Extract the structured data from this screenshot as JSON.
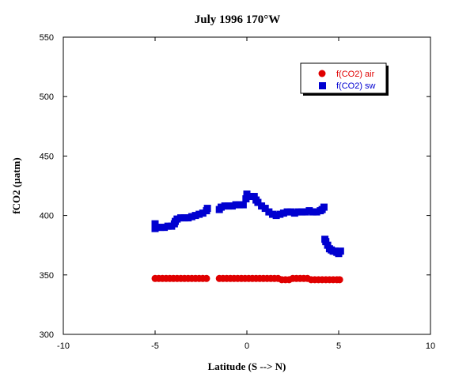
{
  "chart_data": {
    "type": "scatter",
    "title": "July 1996 170°W",
    "xlabel": "Latitude (S --> N)",
    "ylabel": "fCO2 (µatm)",
    "xlim": [
      -10,
      10
    ],
    "ylim": [
      300,
      550
    ],
    "x_ticks": [
      -10,
      -5,
      0,
      5,
      10
    ],
    "y_ticks": [
      300,
      350,
      400,
      450,
      500,
      550
    ],
    "grid": false,
    "legend_position": "top-right",
    "series": [
      {
        "name": "f(CO2) air",
        "marker": "circle",
        "color": "#e00000",
        "points": [
          [
            -5.0,
            347
          ],
          [
            -4.8,
            347
          ],
          [
            -4.6,
            347
          ],
          [
            -4.4,
            347
          ],
          [
            -4.2,
            347
          ],
          [
            -4.0,
            347
          ],
          [
            -3.8,
            347
          ],
          [
            -3.6,
            347
          ],
          [
            -3.4,
            347
          ],
          [
            -3.2,
            347
          ],
          [
            -3.0,
            347
          ],
          [
            -2.8,
            347
          ],
          [
            -2.6,
            347
          ],
          [
            -2.4,
            347
          ],
          [
            -2.2,
            347
          ],
          [
            -1.5,
            347
          ],
          [
            -1.3,
            347
          ],
          [
            -1.1,
            347
          ],
          [
            -0.9,
            347
          ],
          [
            -0.7,
            347
          ],
          [
            -0.5,
            347
          ],
          [
            -0.3,
            347
          ],
          [
            -0.1,
            347
          ],
          [
            0.1,
            347
          ],
          [
            0.3,
            347
          ],
          [
            0.5,
            347
          ],
          [
            0.7,
            347
          ],
          [
            0.9,
            347
          ],
          [
            1.1,
            347
          ],
          [
            1.3,
            347
          ],
          [
            1.5,
            347
          ],
          [
            1.7,
            347
          ],
          [
            1.9,
            346
          ],
          [
            2.1,
            346
          ],
          [
            2.3,
            346
          ],
          [
            2.5,
            347
          ],
          [
            2.7,
            347
          ],
          [
            2.9,
            347
          ],
          [
            3.1,
            347
          ],
          [
            3.3,
            347
          ],
          [
            3.5,
            346
          ],
          [
            3.7,
            346
          ],
          [
            3.9,
            346
          ],
          [
            4.1,
            346
          ],
          [
            4.3,
            346
          ],
          [
            4.5,
            346
          ],
          [
            4.7,
            346
          ],
          [
            4.9,
            346
          ],
          [
            5.05,
            346
          ]
        ]
      },
      {
        "name": "f(CO2) sw",
        "marker": "square",
        "color": "#0000d0",
        "points": [
          [
            -5.0,
            389
          ],
          [
            -5.0,
            393
          ],
          [
            -4.9,
            390
          ],
          [
            -4.7,
            390
          ],
          [
            -4.5,
            390
          ],
          [
            -4.3,
            391
          ],
          [
            -4.1,
            391
          ],
          [
            -3.95,
            393
          ],
          [
            -3.9,
            395
          ],
          [
            -3.8,
            397
          ],
          [
            -3.6,
            398
          ],
          [
            -3.4,
            398
          ],
          [
            -3.2,
            398
          ],
          [
            -3.0,
            399
          ],
          [
            -2.8,
            400
          ],
          [
            -2.6,
            401
          ],
          [
            -2.4,
            402
          ],
          [
            -2.2,
            404
          ],
          [
            -2.15,
            406
          ],
          [
            -1.5,
            405
          ],
          [
            -1.4,
            407
          ],
          [
            -1.2,
            408
          ],
          [
            -1.0,
            408
          ],
          [
            -0.8,
            408
          ],
          [
            -0.6,
            409
          ],
          [
            -0.4,
            409
          ],
          [
            -0.2,
            409
          ],
          [
            -0.05,
            414
          ],
          [
            0.0,
            418
          ],
          [
            0.2,
            416
          ],
          [
            0.4,
            416
          ],
          [
            0.5,
            413
          ],
          [
            0.6,
            411
          ],
          [
            0.8,
            408
          ],
          [
            1.0,
            406
          ],
          [
            1.2,
            403
          ],
          [
            1.4,
            401
          ],
          [
            1.6,
            400
          ],
          [
            1.8,
            401
          ],
          [
            2.0,
            402
          ],
          [
            2.2,
            403
          ],
          [
            2.4,
            403
          ],
          [
            2.6,
            402
          ],
          [
            2.8,
            403
          ],
          [
            3.0,
            403
          ],
          [
            3.2,
            403
          ],
          [
            3.4,
            404
          ],
          [
            3.6,
            403
          ],
          [
            3.8,
            403
          ],
          [
            4.0,
            404
          ],
          [
            4.1,
            405
          ],
          [
            4.2,
            407
          ],
          [
            4.25,
            380
          ],
          [
            4.3,
            378
          ],
          [
            4.4,
            375
          ],
          [
            4.5,
            372
          ],
          [
            4.6,
            371
          ],
          [
            4.7,
            370
          ],
          [
            4.8,
            370
          ],
          [
            4.9,
            369
          ],
          [
            5.0,
            368
          ],
          [
            5.1,
            370
          ]
        ]
      }
    ]
  }
}
